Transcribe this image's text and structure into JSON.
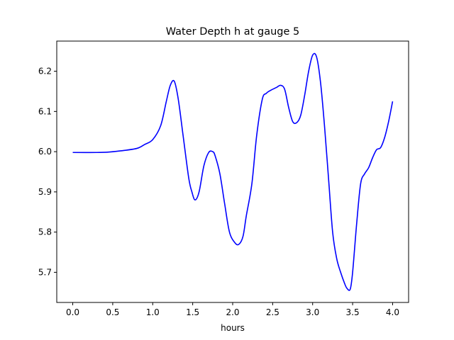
{
  "chart_data": {
    "type": "line",
    "title": "Water Depth h at gauge 5",
    "xlabel": "hours",
    "ylabel": "",
    "xlim": [
      -0.2,
      4.2
    ],
    "ylim": [
      5.625,
      6.275
    ],
    "xticks": [
      0.0,
      0.5,
      1.0,
      1.5,
      2.0,
      2.5,
      3.0,
      3.5,
      4.0
    ],
    "xtick_labels": [
      "0.0",
      "0.5",
      "1.0",
      "1.5",
      "2.0",
      "2.5",
      "3.0",
      "3.5",
      "4.0"
    ],
    "yticks": [
      5.7,
      5.8,
      5.9,
      6.0,
      6.1,
      6.2
    ],
    "ytick_labels": [
      "5.7",
      "5.8",
      "5.9",
      "6.0",
      "6.1",
      "6.2"
    ],
    "grid": false,
    "series": [
      {
        "color": "#0000ff",
        "x": [
          0.0,
          0.3,
          0.45,
          0.6,
          0.8,
          0.9,
          1.0,
          1.1,
          1.17,
          1.22,
          1.27,
          1.32,
          1.38,
          1.45,
          1.49,
          1.53,
          1.58,
          1.64,
          1.7,
          1.75,
          1.78,
          1.84,
          1.9,
          1.96,
          2.03,
          2.08,
          2.13,
          2.17,
          2.24,
          2.3,
          2.37,
          2.42,
          2.47,
          2.55,
          2.6,
          2.65,
          2.7,
          2.75,
          2.8,
          2.85,
          2.9,
          2.95,
          3.0,
          3.05,
          3.1,
          3.15,
          3.2,
          3.25,
          3.3,
          3.35,
          3.4,
          3.43,
          3.47,
          3.5,
          3.55,
          3.6,
          3.65,
          3.7,
          3.75,
          3.8,
          3.85,
          3.9,
          3.95,
          4.0
        ],
        "y": [
          5.998,
          5.998,
          5.999,
          6.002,
          6.008,
          6.018,
          6.03,
          6.065,
          6.125,
          6.165,
          6.175,
          6.13,
          6.04,
          5.935,
          5.9,
          5.88,
          5.9,
          5.965,
          5.998,
          6.0,
          5.99,
          5.945,
          5.87,
          5.8,
          5.773,
          5.77,
          5.79,
          5.84,
          5.92,
          6.04,
          6.13,
          6.145,
          6.152,
          6.16,
          6.165,
          6.155,
          6.11,
          6.075,
          6.072,
          6.09,
          6.14,
          6.2,
          6.24,
          6.235,
          6.17,
          6.06,
          5.93,
          5.8,
          5.735,
          5.7,
          5.672,
          5.66,
          5.658,
          5.7,
          5.82,
          5.92,
          5.945,
          5.96,
          5.985,
          6.005,
          6.01,
          6.035,
          6.075,
          6.125
        ]
      }
    ]
  }
}
